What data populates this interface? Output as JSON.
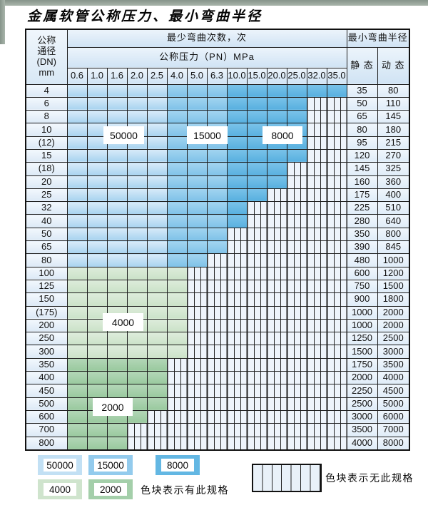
{
  "page": {
    "title": "金属软管公称压力、最小弯曲半径"
  },
  "table": {
    "dn_header": [
      "公称",
      "通径",
      "(DN)",
      "mm"
    ],
    "cycles_header": "最少弯曲次数，次",
    "pressure_header": "公称压力（PN）MPa",
    "radius_header": "最小弯曲半径",
    "static_header": "静 态",
    "dynamic_header": "动 态",
    "pressure_columns": [
      "0.6",
      "1.0",
      "1.6",
      "2.0",
      "2.5",
      "4.0",
      "5.0",
      "6.3",
      "10.0",
      "15.0",
      "20.0",
      "25.0",
      "32.0",
      "35.0"
    ],
    "rows": [
      {
        "dn": "4",
        "static": "35",
        "dynamic": "80",
        "colored": 14,
        "family": "blue"
      },
      {
        "dn": "6",
        "static": "50",
        "dynamic": "110",
        "colored": 12,
        "family": "blue"
      },
      {
        "dn": "8",
        "static": "65",
        "dynamic": "145",
        "colored": 12,
        "family": "blue"
      },
      {
        "dn": "10",
        "static": "80",
        "dynamic": "180",
        "colored": 12,
        "family": "blue"
      },
      {
        "dn": "(12)",
        "static": "95",
        "dynamic": "215",
        "colored": 12,
        "family": "blue"
      },
      {
        "dn": "15",
        "static": "120",
        "dynamic": "270",
        "colored": 12,
        "family": "blue"
      },
      {
        "dn": "(18)",
        "static": "145",
        "dynamic": "325",
        "colored": 11,
        "family": "blue"
      },
      {
        "dn": "20",
        "static": "160",
        "dynamic": "360",
        "colored": 11,
        "family": "blue"
      },
      {
        "dn": "25",
        "static": "175",
        "dynamic": "400",
        "colored": 10,
        "family": "blue"
      },
      {
        "dn": "32",
        "static": "225",
        "dynamic": "510",
        "colored": 9,
        "family": "blue"
      },
      {
        "dn": "40",
        "static": "280",
        "dynamic": "640",
        "colored": 9,
        "family": "blue"
      },
      {
        "dn": "50",
        "static": "350",
        "dynamic": "800",
        "colored": 8,
        "family": "blue"
      },
      {
        "dn": "65",
        "static": "390",
        "dynamic": "845",
        "colored": 8,
        "family": "blue"
      },
      {
        "dn": "80",
        "static": "480",
        "dynamic": "1000",
        "colored": 7,
        "family": "blue"
      },
      {
        "dn": "100",
        "static": "600",
        "dynamic": "1200",
        "colored": 6,
        "family": "green-light"
      },
      {
        "dn": "125",
        "static": "750",
        "dynamic": "1500",
        "colored": 6,
        "family": "green-light"
      },
      {
        "dn": "150",
        "static": "900",
        "dynamic": "1800",
        "colored": 6,
        "family": "green-light"
      },
      {
        "dn": "(175)",
        "static": "1000",
        "dynamic": "2000",
        "colored": 6,
        "family": "green-light"
      },
      {
        "dn": "200",
        "static": "1000",
        "dynamic": "2000",
        "colored": 6,
        "family": "green-light"
      },
      {
        "dn": "250",
        "static": "1250",
        "dynamic": "2500",
        "colored": 6,
        "family": "green-light"
      },
      {
        "dn": "300",
        "static": "1500",
        "dynamic": "3000",
        "colored": 6,
        "family": "green-light"
      },
      {
        "dn": "350",
        "static": "1750",
        "dynamic": "3500",
        "colored": 5,
        "family": "green-dark"
      },
      {
        "dn": "400",
        "static": "2000",
        "dynamic": "4000",
        "colored": 5,
        "family": "green-dark"
      },
      {
        "dn": "450",
        "static": "2250",
        "dynamic": "4500",
        "colored": 5,
        "family": "green-dark"
      },
      {
        "dn": "500",
        "static": "2500",
        "dynamic": "5000",
        "colored": 5,
        "family": "green-dark"
      },
      {
        "dn": "600",
        "static": "3000",
        "dynamic": "6000",
        "colored": 4,
        "family": "green-dark"
      },
      {
        "dn": "700",
        "static": "3500",
        "dynamic": "7000",
        "colored": 3,
        "family": "green-dark"
      },
      {
        "dn": "800",
        "static": "4000",
        "dynamic": "8000",
        "colored": 3,
        "family": "green-dark"
      }
    ]
  },
  "table_labels": [
    "50000",
    "15000",
    "8000",
    "4000",
    "2000"
  ],
  "legend": {
    "swatches": [
      {
        "label": "50000",
        "style": "blue-light"
      },
      {
        "label": "15000",
        "style": "blue-medium"
      },
      {
        "label": "8000",
        "style": "blue-dark"
      },
      {
        "label": "4000",
        "style": "green-light"
      },
      {
        "label": "2000",
        "style": "green-dark"
      }
    ],
    "has_spec_text": "色块表示有此规格",
    "no_spec_text": "色块表示无此规格"
  },
  "colors": {
    "blue_50000": "#a9d4ef",
    "blue_15000": "#8cc7ec",
    "blue_8000": "#63b7e3",
    "green_4000": "#d2e6d0",
    "green_2000": "#a4cfaa",
    "no_spec_bg": "#eef4fb",
    "grid": "#1f1f1f"
  }
}
